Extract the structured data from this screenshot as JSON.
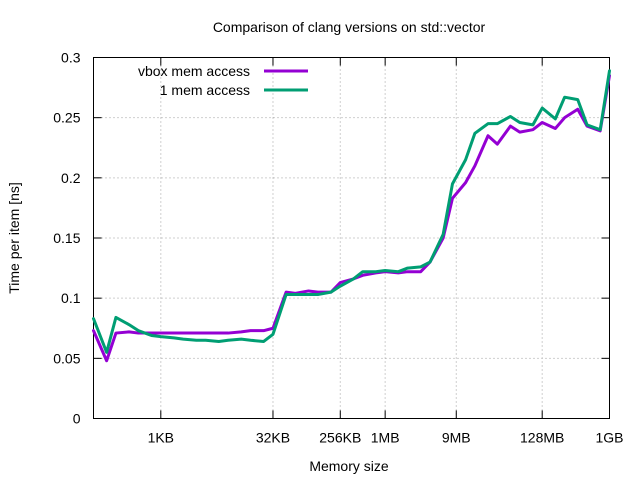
{
  "chart_data": {
    "type": "line",
    "title": "Comparison of clang versions on std::vector",
    "xlabel": "Memory size",
    "ylabel": "Time per item [ns]",
    "x_scale": "log2",
    "xlim": [
      128,
      1073741824
    ],
    "ylim": [
      0,
      0.3
    ],
    "yticks": [
      "0",
      "0.05",
      "0.1",
      "0.15",
      "0.2",
      "0.25",
      "0.3"
    ],
    "xticks": [
      {
        "value": 1024,
        "label": "1KB"
      },
      {
        "value": 32768,
        "label": "32KB"
      },
      {
        "value": 262144,
        "label": "256KB"
      },
      {
        "value": 1048576,
        "label": "1MB"
      },
      {
        "value": 9437184,
        "label": "9MB"
      },
      {
        "value": 134217728,
        "label": "128MB"
      },
      {
        "value": 1073741824,
        "label": "1GB"
      }
    ],
    "grid": true,
    "legend_position": "top-left",
    "x": [
      128,
      192,
      256,
      384,
      512,
      768,
      1024,
      1536,
      2048,
      3072,
      4096,
      6144,
      8192,
      12288,
      16384,
      24576,
      32768,
      49152,
      65536,
      98304,
      131072,
      196608,
      262144,
      393216,
      524288,
      786432,
      1048576,
      1572864,
      2097152,
      3145728,
      4194304,
      6291456,
      8388608,
      12582912,
      16777216,
      25165824,
      33554432,
      50331648,
      67108864,
      100663296,
      134217728,
      201326592,
      268435456,
      402653184,
      536870912,
      805306368,
      1073741824
    ],
    "series": [
      {
        "name": "vbox mem access",
        "color": "#9400d3",
        "values": [
          0.073,
          0.048,
          0.071,
          0.072,
          0.071,
          0.071,
          0.071,
          0.071,
          0.071,
          0.071,
          0.071,
          0.071,
          0.071,
          0.072,
          0.073,
          0.073,
          0.075,
          0.105,
          0.104,
          0.106,
          0.105,
          0.105,
          0.113,
          0.116,
          0.119,
          0.121,
          0.122,
          0.121,
          0.122,
          0.122,
          0.13,
          0.15,
          0.183,
          0.196,
          0.21,
          0.235,
          0.228,
          0.243,
          0.238,
          0.24,
          0.246,
          0.241,
          0.25,
          0.257,
          0.243,
          0.239,
          0.285
        ]
      },
      {
        "name": "1 mem access",
        "color": "#009e73",
        "values": [
          0.083,
          0.055,
          0.084,
          0.078,
          0.073,
          0.069,
          0.068,
          0.067,
          0.066,
          0.065,
          0.065,
          0.064,
          0.065,
          0.066,
          0.065,
          0.064,
          0.07,
          0.103,
          0.103,
          0.103,
          0.103,
          0.105,
          0.11,
          0.116,
          0.122,
          0.122,
          0.123,
          0.122,
          0.125,
          0.126,
          0.13,
          0.153,
          0.195,
          0.215,
          0.237,
          0.245,
          0.245,
          0.251,
          0.246,
          0.244,
          0.258,
          0.249,
          0.267,
          0.265,
          0.244,
          0.24,
          0.289
        ]
      }
    ]
  }
}
